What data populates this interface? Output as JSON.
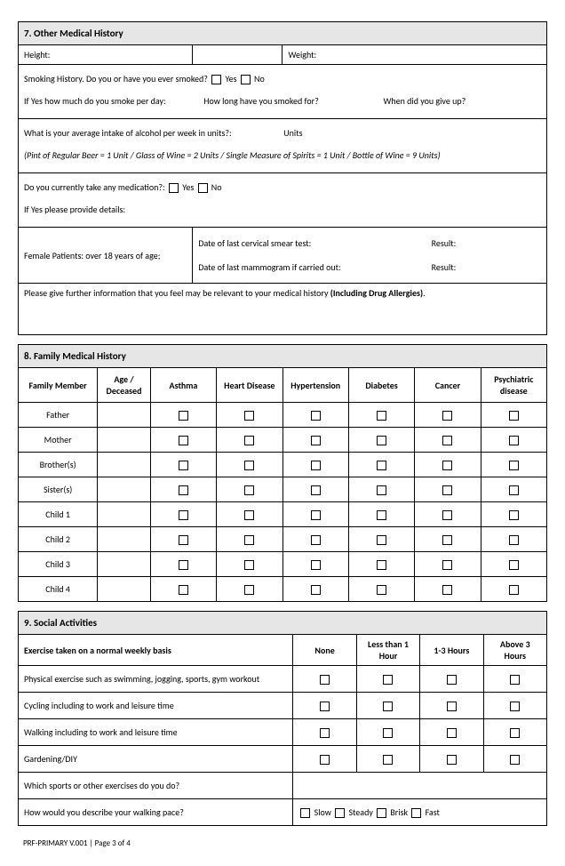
{
  "section7": {
    "title": "7. Other Medical History",
    "height_label": "Height:",
    "weight_label": "Weight:",
    "smoking_q": "Smoking History. Do you or have you ever smoked?",
    "yes": "Yes",
    "no": "No",
    "smoke_perday": "If Yes how much do you smoke per day:",
    "smoke_howlong": "How long have you smoked for?",
    "smoke_giveup": "When did you give up?",
    "alcohol_q": "What is your average intake of alcohol per week in units?:",
    "units": "Units",
    "alcohol_note": "(Pint of Regular Beer =  1 Unit / Glass of Wine = 2 Units / Single Measure of Spirits =  1  Unit /  Bottle of Wine = 9 Units)",
    "med_q": "Do you currently take any medication?:",
    "med_details": "If Yes please provide details:",
    "female_label": "Female Patients: over 18 years of age;",
    "cervical": "Date of last cervical smear test:",
    "mammogram": "Date of last mammogram if carried out:",
    "result": "Result:",
    "further_info_a": "Please give further information that you feel may be relevant to your medical history ",
    "further_info_b": "(Including Drug Allergies)",
    "further_info_c": "."
  },
  "section8": {
    "title": "8. Family Medical History",
    "headers": [
      "Family Member",
      "Age / Deceased",
      "Asthma",
      "Heart Disease",
      "Hypertension",
      "Diabetes",
      "Cancer",
      "Psychiatric disease"
    ],
    "members": [
      "Father",
      "Mother",
      "Brother(s)",
      "Sister(s)",
      "Child 1",
      "Child 2",
      "Child 3",
      "Child 4"
    ]
  },
  "section9": {
    "title": "9. Social Activities",
    "exercise_label": "Exercise taken on a normal weekly basis",
    "cols": [
      "None",
      "Less than 1 Hour",
      "1-3 Hours",
      "Above 3 Hours"
    ],
    "rows": [
      "Physical exercise such as swimming, jogging, sports, gym workout",
      "Cycling including to work and leisure time",
      "Walking including to work and leisure time",
      "Gardening/DIY"
    ],
    "sports_q": "Which sports or other exercises do you do?",
    "pace_q": "How would you describe your walking pace?",
    "pace_opts": [
      "Slow",
      "Steady",
      "Brisk",
      "Fast"
    ]
  },
  "footer": "PRF-PRIMARY V.001 | Page 3 of 4"
}
